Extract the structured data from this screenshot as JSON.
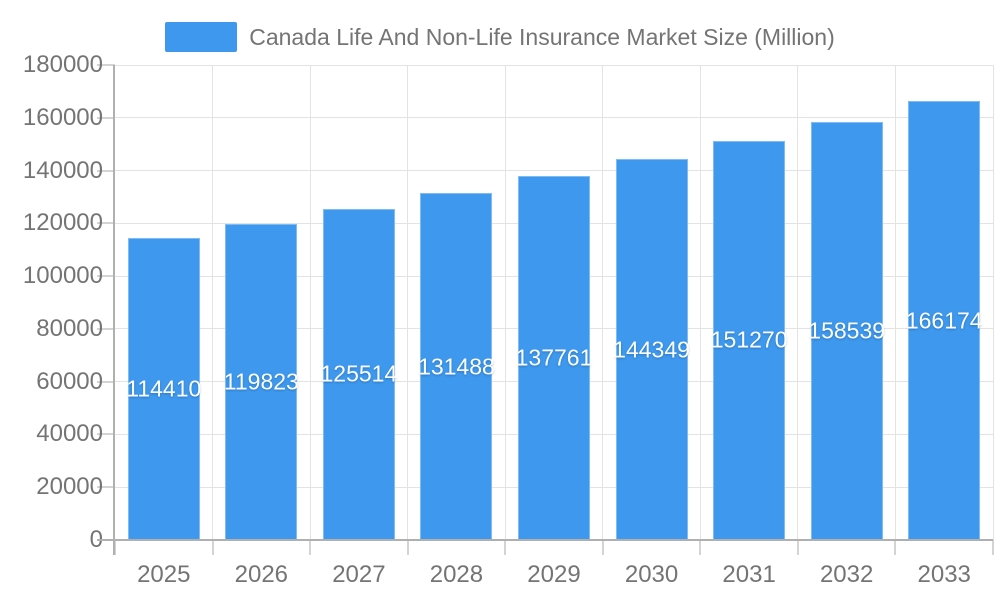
{
  "legend": {
    "label": "Canada Life And Non-Life Insurance Market Size (Million)",
    "swatch_color": "#3d98ee"
  },
  "chart_data": {
    "type": "bar",
    "title": "Canada Life And Non-Life Insurance Market Size (Million)",
    "series_name": "Canada Life And Non-Life Insurance Market Size (Million)",
    "categories": [
      "2025",
      "2026",
      "2027",
      "2028",
      "2029",
      "2030",
      "2031",
      "2032",
      "2033"
    ],
    "values": [
      114410,
      119823,
      125514,
      131488,
      137761,
      144349,
      151270,
      158539,
      166174
    ],
    "bar_labels": [
      "114410",
      "119823",
      "125514",
      "131488",
      "137761",
      "144349",
      "151270",
      "158539",
      "166174"
    ],
    "xlabel": "",
    "ylabel": "",
    "ylim": [
      0,
      180000
    ],
    "y_ticks": [
      0,
      20000,
      40000,
      60000,
      80000,
      100000,
      120000,
      140000,
      160000,
      180000
    ],
    "grid": true,
    "legend_position": "top-center",
    "colors": {
      "bar": "#3d98ee",
      "bar_label_text": "#ffffff",
      "gridline": "#e3e3e3",
      "axis_line": "#b0b0b0",
      "tick": "#d4d4d4",
      "axis_text": "#747474"
    }
  }
}
